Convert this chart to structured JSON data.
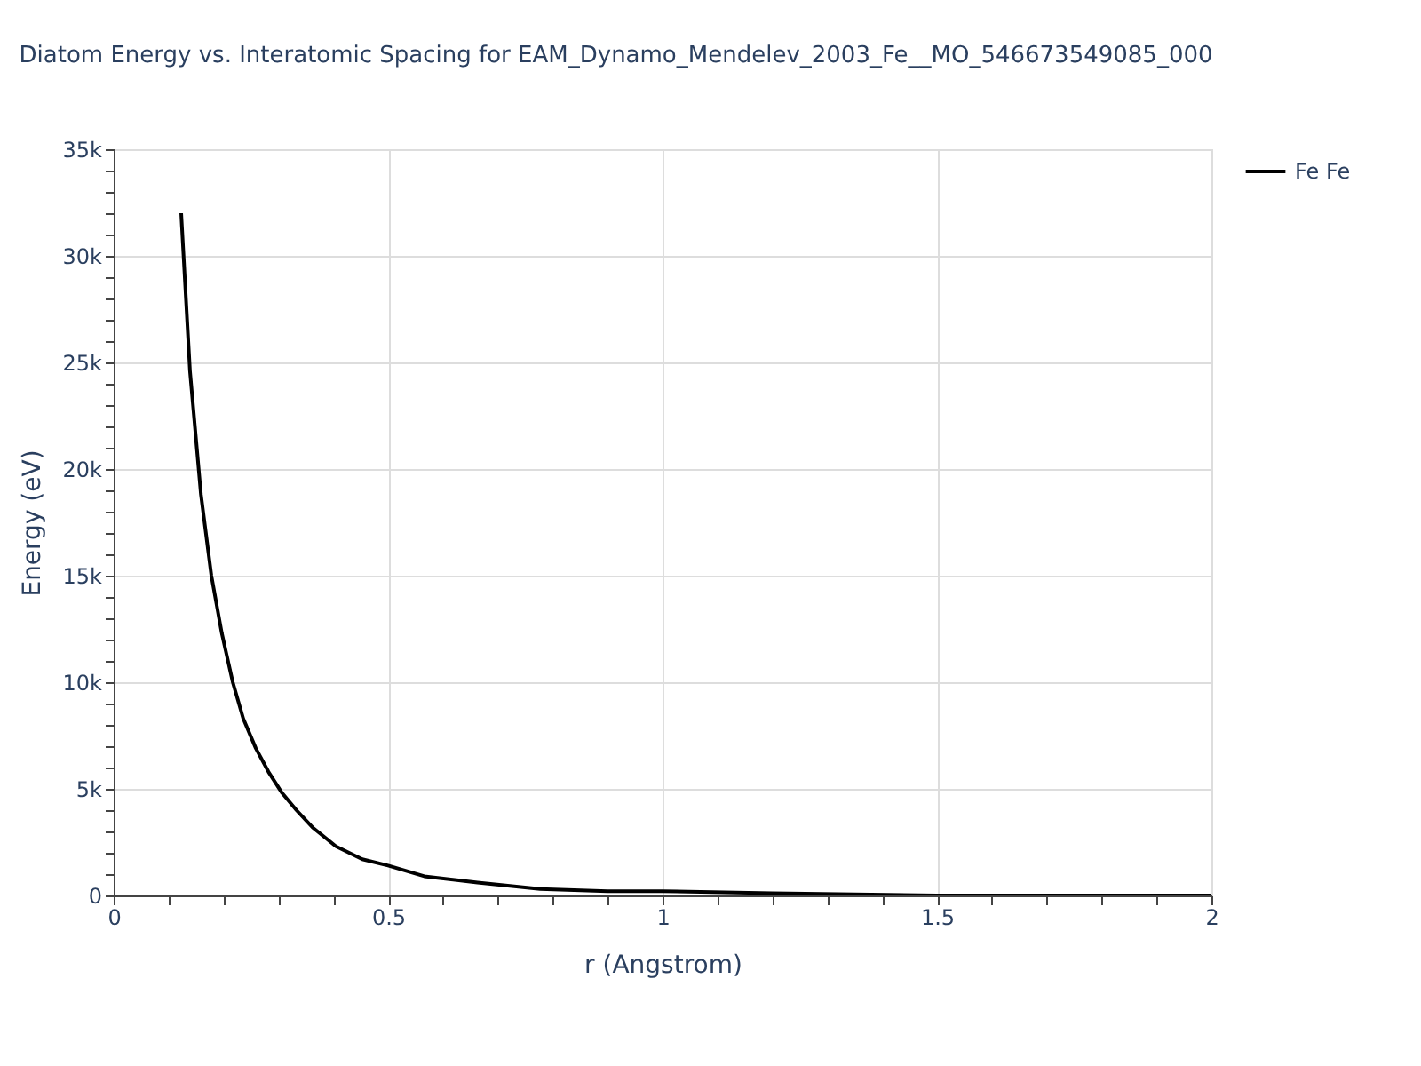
{
  "chart_data": {
    "type": "line",
    "title": "Diatom Energy vs. Interatomic Spacing for EAM_Dynamo_Mendelev_2003_Fe__MO_546673549085_000",
    "xlabel": "r (Angstrom)",
    "ylabel": "Energy (eV)",
    "xlim": [
      0,
      2
    ],
    "ylim": [
      0,
      35000
    ],
    "xticks": [
      0,
      {
        "value": 0.1,
        "label": null
      },
      {
        "value": 0.2,
        "label": null
      },
      {
        "value": 0.3,
        "label": null
      },
      {
        "value": 0.4,
        "label": null
      },
      0.5,
      {
        "value": 0.6,
        "label": null
      },
      {
        "value": 0.7,
        "label": null
      },
      {
        "value": 0.8,
        "label": null
      },
      {
        "value": 0.9,
        "label": null
      },
      1,
      {
        "value": 1.1,
        "label": null
      },
      {
        "value": 1.2,
        "label": null
      },
      {
        "value": 1.3,
        "label": null
      },
      {
        "value": 1.4,
        "label": null
      },
      1.5,
      {
        "value": 1.6,
        "label": null
      },
      {
        "value": 1.7,
        "label": null
      },
      {
        "value": 1.8,
        "label": null
      },
      {
        "value": 1.9,
        "label": null
      },
      2
    ],
    "yticks": [
      {
        "value": 0,
        "label": "0"
      },
      {
        "value": 1000,
        "label": null
      },
      {
        "value": 2000,
        "label": null
      },
      {
        "value": 3000,
        "label": null
      },
      {
        "value": 4000,
        "label": null
      },
      {
        "value": 5000,
        "label": "5k"
      },
      {
        "value": 6000,
        "label": null
      },
      {
        "value": 7000,
        "label": null
      },
      {
        "value": 8000,
        "label": null
      },
      {
        "value": 9000,
        "label": null
      },
      {
        "value": 10000,
        "label": "10k"
      },
      {
        "value": 11000,
        "label": null
      },
      {
        "value": 12000,
        "label": null
      },
      {
        "value": 13000,
        "label": null
      },
      {
        "value": 14000,
        "label": null
      },
      {
        "value": 15000,
        "label": "15k"
      },
      {
        "value": 16000,
        "label": null
      },
      {
        "value": 17000,
        "label": null
      },
      {
        "value": 18000,
        "label": null
      },
      {
        "value": 19000,
        "label": null
      },
      {
        "value": 20000,
        "label": "20k"
      },
      {
        "value": 21000,
        "label": null
      },
      {
        "value": 22000,
        "label": null
      },
      {
        "value": 23000,
        "label": null
      },
      {
        "value": 24000,
        "label": null
      },
      {
        "value": 25000,
        "label": "25k"
      },
      {
        "value": 26000,
        "label": null
      },
      {
        "value": 27000,
        "label": null
      },
      {
        "value": 28000,
        "label": null
      },
      {
        "value": 29000,
        "label": null
      },
      {
        "value": 30000,
        "label": "30k"
      },
      {
        "value": 31000,
        "label": null
      },
      {
        "value": 32000,
        "label": null
      },
      {
        "value": 33000,
        "label": null
      },
      {
        "value": 34000,
        "label": null
      },
      {
        "value": 35000,
        "label": "35k"
      }
    ],
    "grid": true,
    "legend": "top right",
    "marker": "none",
    "line_style": "solid",
    "series": [
      {
        "name": "Fe Fe",
        "color": "#000000",
        "x": [
          0.123,
          0.139,
          0.159,
          0.178,
          0.197,
          0.217,
          0.236,
          0.259,
          0.282,
          0.307,
          0.333,
          0.362,
          0.405,
          0.453,
          0.5,
          0.566,
          0.663,
          0.777,
          0.9,
          1.0,
          1.2,
          1.5,
          2.0
        ],
        "values": [
          32000,
          24600,
          18800,
          15000,
          12300,
          10000,
          8300,
          6900,
          5800,
          4800,
          4000,
          3200,
          2300,
          1700,
          1400,
          900,
          600,
          300,
          200,
          200,
          100,
          0,
          0
        ]
      }
    ]
  }
}
